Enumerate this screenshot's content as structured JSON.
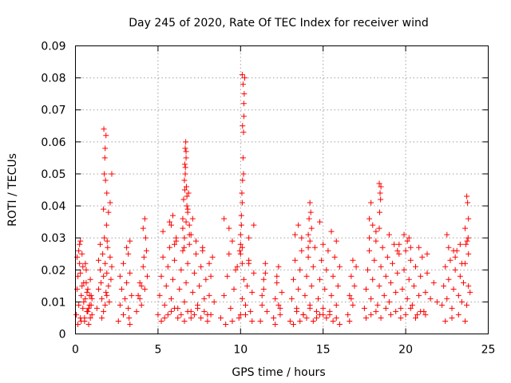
{
  "chart_data": {
    "type": "scatter",
    "title": "Day 245 of 2020, Rate Of TEC Index for receiver wind",
    "xlabel": "GPS time / hours",
    "ylabel": "ROTI / TECUs",
    "xlim": [
      0,
      25
    ],
    "ylim": [
      0,
      0.09
    ],
    "xticks": [
      0,
      5,
      10,
      15,
      20,
      25
    ],
    "xtick_labels": [
      "0",
      "5",
      "10",
      "15",
      "20",
      "25"
    ],
    "yticks": [
      0,
      0.01,
      0.02,
      0.03,
      0.04,
      0.05,
      0.06,
      0.07,
      0.08,
      0.09
    ],
    "ytick_labels": [
      "0",
      "0.01",
      "0.02",
      "0.03",
      "0.04",
      "0.05",
      "0.06",
      "0.07",
      "0.08",
      "0.09"
    ],
    "grid": true,
    "marker": "+",
    "color": "#ff0000",
    "series": [
      {
        "x": [
          0.05,
          0.1,
          0.15,
          0.2,
          0.25,
          0.3,
          0.35,
          0.4,
          0.45,
          0.5,
          0.55,
          0.6,
          0.65,
          0.7,
          0.75,
          0.8,
          0.85,
          0.9,
          0.95,
          1.0,
          0.1,
          0.2,
          0.3,
          0.4,
          0.5,
          0.6,
          0.7,
          0.8,
          0.9,
          1.0,
          0.15,
          0.35,
          0.55,
          0.75,
          0.95,
          0.25,
          0.45,
          0.65,
          0.85,
          0.3,
          1.3,
          1.4,
          1.5,
          1.55,
          1.6,
          1.65,
          1.7,
          1.75,
          1.8,
          1.85,
          1.9,
          1.95,
          2.0,
          2.05,
          2.1,
          2.15,
          2.2,
          1.7,
          1.75,
          1.8,
          1.85,
          1.9,
          1.72,
          1.78,
          1.82,
          1.88,
          1.92,
          2.0,
          2.1,
          2.2,
          1.6,
          1.7,
          1.8,
          1.9,
          1.5,
          1.4,
          2.6,
          2.7,
          2.8,
          2.9,
          3.0,
          3.1,
          3.2,
          3.3,
          3.4,
          2.7,
          2.9,
          3.1,
          3.3,
          3.2,
          3.25,
          3.3,
          3.7,
          3.8,
          3.9,
          4.0,
          4.1,
          4.2,
          4.3,
          4.35,
          4.1,
          4.2,
          4.25,
          3.9,
          4.0,
          4.15,
          5.0,
          5.1,
          5.2,
          5.3,
          5.4,
          5.5,
          5.6,
          5.7,
          5.8,
          5.9,
          6.0,
          6.1,
          6.2,
          6.3,
          6.4,
          6.5,
          6.6,
          6.7,
          6.8,
          6.9,
          7.0,
          7.1,
          7.2,
          7.3,
          7.4,
          7.5,
          7.6,
          7.7,
          7.8,
          7.9,
          8.0,
          8.1,
          8.2,
          8.3,
          8.4,
          5.2,
          5.4,
          5.6,
          5.8,
          6.0,
          6.2,
          6.4,
          6.6,
          6.8,
          7.0,
          7.2,
          7.4,
          7.6,
          7.8,
          8.0,
          8.2,
          5.3,
          5.7,
          6.1,
          6.5,
          6.9,
          7.3,
          7.7,
          8.1,
          6.5,
          6.55,
          6.6,
          6.62,
          6.65,
          6.68,
          6.7,
          6.72,
          6.75,
          6.8,
          6.85,
          6.9,
          6.6,
          6.65,
          6.7,
          6.75,
          6.8,
          6.58,
          6.62,
          6.66,
          6.7,
          7.0,
          7.1,
          5.8,
          5.9,
          6.0,
          8.8,
          9.0,
          9.2,
          9.4,
          9.6,
          9.8,
          10.0,
          10.1,
          10.2,
          10.3,
          10.4,
          10.5,
          10.6,
          10.7,
          10.8,
          9.1,
          9.5,
          9.9,
          10.3,
          10.7,
          9.3,
          9.7,
          10.1,
          10.5,
          10.0,
          10.05,
          10.1,
          10.12,
          10.15,
          10.18,
          10.2,
          10.22,
          10.25,
          10.1,
          10.15,
          10.2,
          10.12,
          10.18,
          10.08,
          10.05,
          10.0,
          9.95,
          10.0,
          10.1,
          9.3,
          9.5,
          10.5,
          10.8,
          9.0,
          11.2,
          11.3,
          11.4,
          11.5,
          11.6,
          11.3,
          11.5,
          11.4,
          12.0,
          12.1,
          12.2,
          12.3,
          12.4,
          12.5,
          12.2,
          12.4,
          12.1,
          12.3,
          13.0,
          13.1,
          13.2,
          13.3,
          13.4,
          13.5,
          13.6,
          13.7,
          13.8,
          13.9,
          14.0,
          14.1,
          14.2,
          14.3,
          14.4,
          14.5,
          14.6,
          14.7,
          14.8,
          14.9,
          15.0,
          15.1,
          15.2,
          15.3,
          15.4,
          15.5,
          15.6,
          15.7,
          15.8,
          15.9,
          16.0,
          13.2,
          13.6,
          14.0,
          14.4,
          14.8,
          15.2,
          15.6,
          16.0,
          13.4,
          13.8,
          14.2,
          14.6,
          15.0,
          15.4,
          15.8,
          14.1,
          14.15,
          14.2,
          14.25,
          14.3,
          14.2,
          14.1,
          13.5,
          13.7,
          14.8,
          15.0,
          15.5,
          15.8,
          13.3,
          16.5,
          16.6,
          16.7,
          16.8,
          16.9,
          17.0,
          16.6,
          16.8,
          16.7,
          17.5,
          17.6,
          17.7,
          17.8,
          17.9,
          18.0,
          18.1,
          18.2,
          18.3,
          18.4,
          18.5,
          18.6,
          18.7,
          18.8,
          18.9,
          19.0,
          19.1,
          19.2,
          19.3,
          19.4,
          19.5,
          19.6,
          19.7,
          19.8,
          19.9,
          20.0,
          20.1,
          20.2,
          20.3,
          20.4,
          20.5,
          20.6,
          20.7,
          20.8,
          20.9,
          21.0,
          21.1,
          21.2,
          21.3,
          21.5,
          21.7,
          21.9,
          17.6,
          17.9,
          18.2,
          18.5,
          18.8,
          19.1,
          19.4,
          19.7,
          20.0,
          20.3,
          20.6,
          20.9,
          21.2,
          17.8,
          18.4,
          19.0,
          19.6,
          20.2,
          20.8,
          18.4,
          18.45,
          18.5,
          18.42,
          18.48,
          17.9,
          17.8,
          18.0,
          18.2,
          19.9,
          20.1,
          20.3,
          19.5,
          21.3,
          22.2,
          22.3,
          22.4,
          22.5,
          22.6,
          22.7,
          22.8,
          22.9,
          23.0,
          23.1,
          23.2,
          23.3,
          23.4,
          23.5,
          23.6,
          23.7,
          23.8,
          23.9,
          22.4,
          22.8,
          23.2,
          23.6,
          22.6,
          23.0,
          23.4,
          23.8,
          23.7,
          23.75,
          23.8,
          23.72,
          23.78,
          23.6,
          23.65,
          22.5,
          22.9,
          23.3
        ],
        "y": [
          0.006,
          0.014,
          0.018,
          0.009,
          0.022,
          0.005,
          0.012,
          0.025,
          0.008,
          0.016,
          0.004,
          0.011,
          0.02,
          0.007,
          0.014,
          0.003,
          0.009,
          0.017,
          0.012,
          0.006,
          0.024,
          0.026,
          0.019,
          0.015,
          0.01,
          0.022,
          0.013,
          0.008,
          0.005,
          0.011,
          0.003,
          0.004,
          0.005,
          0.007,
          0.009,
          0.028,
          0.021,
          0.016,
          0.012,
          0.029,
          0.008,
          0.014,
          0.02,
          0.016,
          0.011,
          0.025,
          0.018,
          0.03,
          0.022,
          0.013,
          0.019,
          0.027,
          0.015,
          0.01,
          0.024,
          0.017,
          0.021,
          0.039,
          0.05,
          0.058,
          0.062,
          0.044,
          0.064,
          0.055,
          0.048,
          0.034,
          0.029,
          0.038,
          0.041,
          0.05,
          0.005,
          0.007,
          0.009,
          0.012,
          0.028,
          0.023,
          0.004,
          0.009,
          0.014,
          0.006,
          0.011,
          0.016,
          0.008,
          0.003,
          0.012,
          0.018,
          0.022,
          0.027,
          0.029,
          0.025,
          0.005,
          0.019,
          0.007,
          0.012,
          0.016,
          0.009,
          0.021,
          0.014,
          0.026,
          0.018,
          0.033,
          0.036,
          0.03,
          0.011,
          0.015,
          0.024,
          0.006,
          0.012,
          0.018,
          0.024,
          0.009,
          0.015,
          0.021,
          0.027,
          0.011,
          0.017,
          0.023,
          0.029,
          0.008,
          0.014,
          0.02,
          0.026,
          0.01,
          0.016,
          0.022,
          0.028,
          0.007,
          0.013,
          0.019,
          0.025,
          0.009,
          0.015,
          0.021,
          0.027,
          0.011,
          0.017,
          0.006,
          0.012,
          0.018,
          0.024,
          0.01,
          0.004,
          0.005,
          0.006,
          0.007,
          0.008,
          0.005,
          0.006,
          0.004,
          0.007,
          0.005,
          0.006,
          0.008,
          0.005,
          0.007,
          0.004,
          0.006,
          0.032,
          0.035,
          0.03,
          0.033,
          0.031,
          0.029,
          0.026,
          0.022,
          0.036,
          0.042,
          0.048,
          0.053,
          0.058,
          0.06,
          0.055,
          0.046,
          0.04,
          0.038,
          0.044,
          0.034,
          0.03,
          0.05,
          0.057,
          0.043,
          0.039,
          0.027,
          0.045,
          0.052,
          0.035,
          0.031,
          0.036,
          0.034,
          0.037,
          0.028,
          0.005,
          0.012,
          0.018,
          0.008,
          0.014,
          0.021,
          0.006,
          0.011,
          0.017,
          0.009,
          0.015,
          0.023,
          0.007,
          0.013,
          0.019,
          0.003,
          0.004,
          0.005,
          0.006,
          0.004,
          0.025,
          0.02,
          0.027,
          0.022,
          0.028,
          0.034,
          0.041,
          0.048,
          0.055,
          0.063,
          0.068,
          0.075,
          0.08,
          0.081,
          0.078,
          0.072,
          0.065,
          0.05,
          0.044,
          0.037,
          0.031,
          0.026,
          0.025,
          0.022,
          0.033,
          0.029,
          0.03,
          0.034,
          0.036,
          0.004,
          0.009,
          0.014,
          0.019,
          0.007,
          0.012,
          0.022,
          0.017,
          0.005,
          0.011,
          0.016,
          0.021,
          0.008,
          0.013,
          0.018,
          0.006,
          0.003,
          0.009,
          0.004,
          0.011,
          0.017,
          0.023,
          0.008,
          0.014,
          0.02,
          0.026,
          0.006,
          0.012,
          0.018,
          0.024,
          0.009,
          0.015,
          0.021,
          0.027,
          0.005,
          0.011,
          0.017,
          0.023,
          0.008,
          0.014,
          0.02,
          0.026,
          0.006,
          0.012,
          0.018,
          0.024,
          0.009,
          0.015,
          0.021,
          0.003,
          0.004,
          0.005,
          0.004,
          0.006,
          0.005,
          0.004,
          0.003,
          0.007,
          0.006,
          0.008,
          0.007,
          0.006,
          0.007,
          0.005,
          0.031,
          0.036,
          0.041,
          0.038,
          0.033,
          0.029,
          0.027,
          0.034,
          0.03,
          0.035,
          0.028,
          0.032,
          0.029,
          0.031,
          0.006,
          0.012,
          0.018,
          0.009,
          0.015,
          0.021,
          0.004,
          0.023,
          0.011,
          0.008,
          0.014,
          0.02,
          0.026,
          0.011,
          0.017,
          0.023,
          0.029,
          0.009,
          0.015,
          0.021,
          0.027,
          0.012,
          0.018,
          0.024,
          0.01,
          0.016,
          0.022,
          0.028,
          0.013,
          0.019,
          0.025,
          0.008,
          0.014,
          0.02,
          0.026,
          0.011,
          0.017,
          0.023,
          0.009,
          0.015,
          0.021,
          0.006,
          0.012,
          0.018,
          0.024,
          0.007,
          0.013,
          0.019,
          0.011,
          0.016,
          0.01,
          0.005,
          0.006,
          0.007,
          0.005,
          0.008,
          0.006,
          0.007,
          0.005,
          0.006,
          0.008,
          0.005,
          0.007,
          0.006,
          0.03,
          0.033,
          0.031,
          0.028,
          0.03,
          0.027,
          0.047,
          0.044,
          0.046,
          0.038,
          0.042,
          0.041,
          0.036,
          0.034,
          0.032,
          0.031,
          0.029,
          0.027,
          0.026,
          0.025,
          0.009,
          0.015,
          0.021,
          0.011,
          0.017,
          0.023,
          0.008,
          0.014,
          0.02,
          0.026,
          0.012,
          0.018,
          0.01,
          0.016,
          0.022,
          0.009,
          0.015,
          0.013,
          0.004,
          0.005,
          0.006,
          0.004,
          0.027,
          0.024,
          0.022,
          0.025,
          0.043,
          0.041,
          0.036,
          0.029,
          0.03,
          0.033,
          0.028,
          0.031,
          0.026,
          0.028
        ]
      }
    ]
  }
}
